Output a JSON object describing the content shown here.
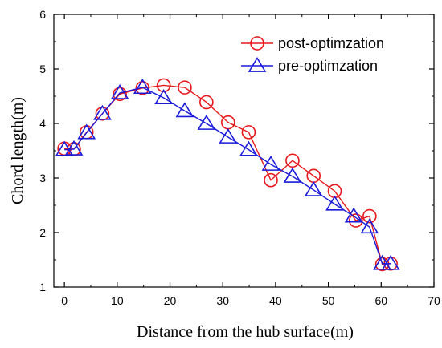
{
  "chart_data": {
    "type": "line",
    "xlabel": "Distance from the hub surface(m)",
    "ylabel": "Chord length(m)",
    "xlim": [
      -2,
      70
    ],
    "ylim": [
      1,
      6
    ],
    "xticks": [
      0,
      10,
      20,
      30,
      40,
      50,
      60,
      70
    ],
    "yticks": [
      1,
      2,
      3,
      4,
      5,
      6
    ],
    "legend_position": "top-right",
    "grid": false,
    "series": [
      {
        "name": "post-optimzation",
        "color": "#e8171b",
        "marker": "circle",
        "x": [
          0,
          1.8,
          4.2,
          7.2,
          10.5,
          14.8,
          18.8,
          22.8,
          26.9,
          31,
          34.9,
          39.1,
          43.2,
          47.2,
          51.2,
          55.2,
          57.8,
          60.2,
          61.8
        ],
        "y": [
          3.54,
          3.53,
          3.84,
          4.18,
          4.54,
          4.65,
          4.7,
          4.66,
          4.39,
          4.02,
          3.84,
          2.96,
          3.32,
          3.04,
          2.76,
          2.22,
          2.3,
          1.42,
          1.43
        ]
      },
      {
        "name": "pre-optimzation",
        "color": "#1a1adb",
        "marker": "triangle",
        "x": [
          0,
          1.8,
          4.2,
          7.2,
          10.5,
          14.8,
          18.8,
          22.8,
          26.9,
          31,
          34.9,
          39.1,
          43.2,
          47.2,
          51.2,
          54.8,
          57.8,
          60.2,
          61.8
        ],
        "y": [
          3.52,
          3.53,
          3.83,
          4.18,
          4.56,
          4.66,
          4.47,
          4.23,
          4.0,
          3.75,
          3.52,
          3.25,
          3.03,
          2.78,
          2.52,
          2.3,
          2.1,
          1.43,
          1.43
        ]
      }
    ]
  }
}
